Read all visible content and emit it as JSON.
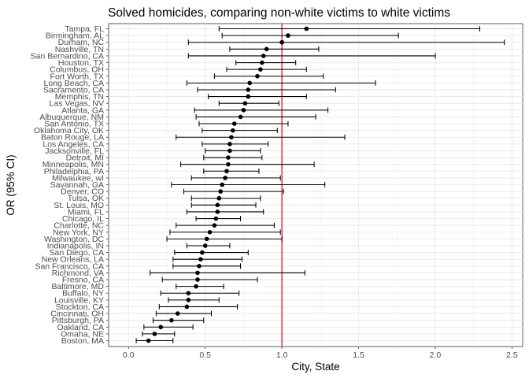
{
  "chart_data": {
    "type": "scatter",
    "title": "Solved homicides, comparing non-white victims to white victims",
    "xlabel": "City, State",
    "ylabel": "OR (95% CI)",
    "xlim": [
      -0.13,
      2.57
    ],
    "x_ticks": [
      0.0,
      0.5,
      1.0,
      1.5,
      2.0,
      2.5
    ],
    "x_tick_labels": [
      "0.0",
      "0.5",
      "1.0",
      "1.5",
      "2.0",
      "2.5"
    ],
    "reference_line": {
      "x": 1.0,
      "color": "#e31a1c"
    },
    "grid": true,
    "legend": "none",
    "point_color": "#000000",
    "cities": [
      {
        "label": "Tampa, FL",
        "or": 1.16,
        "low": 0.59,
        "high": 2.29
      },
      {
        "label": "Birmingham, AL",
        "or": 1.04,
        "low": 0.61,
        "high": 1.76
      },
      {
        "label": "Durham, NC",
        "or": 1.0,
        "low": 0.39,
        "high": 2.45
      },
      {
        "label": "Nashville, TN",
        "or": 0.9,
        "low": 0.66,
        "high": 1.24
      },
      {
        "label": "San Bernardino, CA",
        "or": 0.88,
        "low": 0.39,
        "high": 2.0
      },
      {
        "label": "Houston, TX",
        "or": 0.87,
        "low": 0.7,
        "high": 1.09
      },
      {
        "label": "Columbus, OH",
        "or": 0.86,
        "low": 0.64,
        "high": 1.16
      },
      {
        "label": "Fort Worth, TX",
        "or": 0.84,
        "low": 0.56,
        "high": 1.27
      },
      {
        "label": "Long Beach, CA",
        "or": 0.79,
        "low": 0.38,
        "high": 1.61
      },
      {
        "label": "Sacramento, CA",
        "or": 0.78,
        "low": 0.45,
        "high": 1.35
      },
      {
        "label": "Memphis, TN",
        "or": 0.78,
        "low": 0.52,
        "high": 1.16
      },
      {
        "label": "Las Vegas, NV",
        "or": 0.76,
        "low": 0.59,
        "high": 0.98
      },
      {
        "label": "Atlanta, GA",
        "or": 0.75,
        "low": 0.43,
        "high": 1.3
      },
      {
        "label": "Albuquerque, NM",
        "or": 0.73,
        "low": 0.44,
        "high": 1.22
      },
      {
        "label": "San Antonio, TX",
        "or": 0.69,
        "low": 0.46,
        "high": 1.04
      },
      {
        "label": "Oklahoma City, OK",
        "or": 0.68,
        "low": 0.48,
        "high": 0.97
      },
      {
        "label": "Baton Rouge, LA",
        "or": 0.67,
        "low": 0.31,
        "high": 1.41
      },
      {
        "label": "Los Angeles, CA",
        "or": 0.66,
        "low": 0.48,
        "high": 0.91
      },
      {
        "label": "Jacksonville, FL",
        "or": 0.66,
        "low": 0.5,
        "high": 0.86
      },
      {
        "label": "Detroit, MI",
        "or": 0.65,
        "low": 0.49,
        "high": 0.87
      },
      {
        "label": "Minneapolis, MN",
        "or": 0.65,
        "low": 0.34,
        "high": 1.21
      },
      {
        "label": "Philadelphia, PA",
        "or": 0.64,
        "low": 0.49,
        "high": 0.85
      },
      {
        "label": "Milwaukee, wI",
        "or": 0.63,
        "low": 0.41,
        "high": 0.99
      },
      {
        "label": "Savannah, GA",
        "or": 0.61,
        "low": 0.28,
        "high": 1.28
      },
      {
        "label": "Denver, CO",
        "or": 0.6,
        "low": 0.36,
        "high": 1.01
      },
      {
        "label": "Tulsa, OK",
        "or": 0.59,
        "low": 0.41,
        "high": 0.86
      },
      {
        "label": "St. Louis, MO",
        "or": 0.58,
        "low": 0.41,
        "high": 0.83
      },
      {
        "label": "Miami, FL",
        "or": 0.58,
        "low": 0.38,
        "high": 0.88
      },
      {
        "label": "Chicago, IL",
        "or": 0.57,
        "low": 0.44,
        "high": 0.73
      },
      {
        "label": "Charlotte, NC",
        "or": 0.56,
        "low": 0.31,
        "high": 0.95
      },
      {
        "label": "New York, NY",
        "or": 0.53,
        "low": 0.27,
        "high": 0.99
      },
      {
        "label": "Washington, DC",
        "or": 0.51,
        "low": 0.25,
        "high": 1.0
      },
      {
        "label": "Indianapolis, IN",
        "or": 0.5,
        "low": 0.38,
        "high": 0.66
      },
      {
        "label": "San Diego, CA",
        "or": 0.48,
        "low": 0.3,
        "high": 0.78
      },
      {
        "label": "New Orleans, LA",
        "or": 0.47,
        "low": 0.29,
        "high": 0.74
      },
      {
        "label": "San Francisco, CA",
        "or": 0.46,
        "low": 0.29,
        "high": 0.73
      },
      {
        "label": "Richmond, VA",
        "or": 0.45,
        "low": 0.14,
        "high": 1.15
      },
      {
        "label": "Fresno, CA",
        "or": 0.45,
        "low": 0.22,
        "high": 0.84
      },
      {
        "label": "Baltimore, MD",
        "or": 0.44,
        "low": 0.31,
        "high": 0.62
      },
      {
        "label": "Buffalo, NY",
        "or": 0.39,
        "low": 0.21,
        "high": 0.72
      },
      {
        "label": "Louisville, KY",
        "or": 0.39,
        "low": 0.26,
        "high": 0.59
      },
      {
        "label": "Stockton, CA",
        "or": 0.38,
        "low": 0.2,
        "high": 0.71
      },
      {
        "label": "Cincinnati, OH",
        "or": 0.32,
        "low": 0.18,
        "high": 0.54
      },
      {
        "label": "Pittsburgh, PA",
        "or": 0.28,
        "low": 0.16,
        "high": 0.49
      },
      {
        "label": "Oakland, CA",
        "or": 0.21,
        "low": 0.1,
        "high": 0.42
      },
      {
        "label": "Omaha, NE",
        "or": 0.17,
        "low": 0.09,
        "high": 0.3
      },
      {
        "label": "Boston, MA",
        "or": 0.13,
        "low": 0.05,
        "high": 0.29
      }
    ]
  }
}
